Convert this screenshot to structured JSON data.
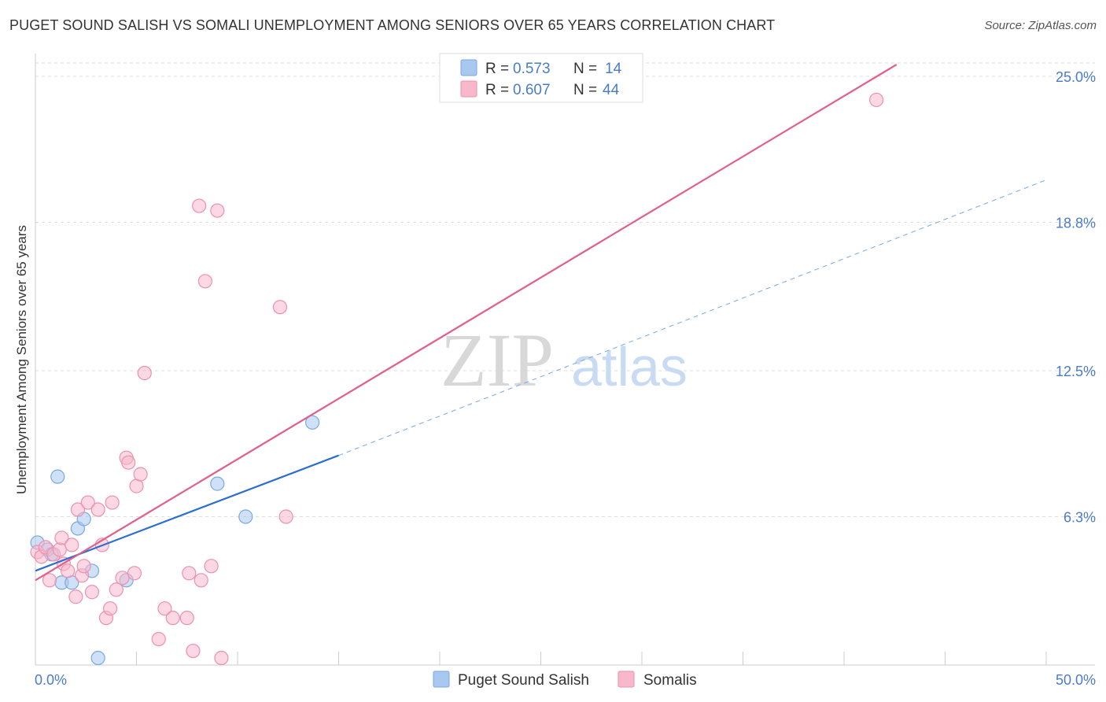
{
  "title": "PUGET SOUND SALISH VS SOMALI UNEMPLOYMENT AMONG SENIORS OVER 65 YEARS CORRELATION CHART",
  "source": "Source: ZipAtlas.com",
  "watermark": {
    "zip": "ZIP",
    "atlas": "atlas"
  },
  "colors": {
    "blue_fill": "#a8c8f0",
    "blue_stroke": "#7aa8e0",
    "blue_line": "#2a6fcf",
    "pink_fill": "#f8b8cc",
    "pink_stroke": "#ee90ae",
    "pink_line": "#e0608a",
    "tick_label": "#4a7cc7",
    "grid": "#dddddd"
  },
  "legend": {
    "r_label": "R =",
    "n_label": "N =",
    "rows": [
      {
        "series": "Puget Sound Salish",
        "r": "0.573",
        "n": "14"
      },
      {
        "series": "Somalis",
        "r": "0.607",
        "n": "44"
      }
    ]
  },
  "chart_data": {
    "type": "scatter",
    "title": "PUGET SOUND SALISH VS SOMALI UNEMPLOYMENT AMONG SENIORS OVER 65 YEARS CORRELATION CHART",
    "xlabel": "",
    "ylabel": "Unemployment Among Seniors over 65 years",
    "xlim": [
      0,
      50
    ],
    "ylim": [
      0,
      25
    ],
    "x_tick_labels": [
      "0.0%",
      "50.0%"
    ],
    "y_ticks": [
      {
        "value": 6.3,
        "label": "6.3%"
      },
      {
        "value": 12.5,
        "label": "12.5%"
      },
      {
        "value": 18.8,
        "label": "18.8%"
      },
      {
        "value": 25.0,
        "label": "25.0%"
      }
    ],
    "grid": true,
    "series": [
      {
        "name": "Puget Sound Salish",
        "points": [
          [
            0.1,
            5.2
          ],
          [
            0.6,
            4.9
          ],
          [
            0.8,
            4.7
          ],
          [
            1.1,
            8.0
          ],
          [
            1.3,
            3.5
          ],
          [
            1.8,
            3.5
          ],
          [
            2.1,
            5.8
          ],
          [
            2.4,
            6.2
          ],
          [
            2.8,
            4.0
          ],
          [
            3.1,
            0.3
          ],
          [
            4.5,
            3.6
          ],
          [
            9.0,
            7.7
          ],
          [
            10.4,
            6.3
          ],
          [
            13.7,
            10.3
          ]
        ],
        "trend": {
          "x0": 0,
          "y0": 4.0,
          "x1": 15.0,
          "y1": 8.9,
          "dash_x1": 50,
          "dash_y1": 20.6
        }
      },
      {
        "name": "Somalis",
        "points": [
          [
            0.1,
            4.8
          ],
          [
            0.3,
            4.6
          ],
          [
            0.5,
            5.0
          ],
          [
            0.7,
            3.6
          ],
          [
            0.9,
            4.7
          ],
          [
            1.2,
            4.9
          ],
          [
            1.3,
            5.4
          ],
          [
            1.4,
            4.3
          ],
          [
            1.6,
            4.0
          ],
          [
            1.8,
            5.1
          ],
          [
            2.0,
            2.9
          ],
          [
            2.1,
            6.6
          ],
          [
            2.3,
            3.8
          ],
          [
            2.4,
            4.2
          ],
          [
            2.6,
            6.9
          ],
          [
            2.8,
            3.1
          ],
          [
            3.1,
            6.6
          ],
          [
            3.3,
            5.1
          ],
          [
            3.5,
            2.0
          ],
          [
            3.7,
            2.4
          ],
          [
            3.8,
            6.9
          ],
          [
            4.0,
            3.2
          ],
          [
            4.3,
            3.7
          ],
          [
            4.5,
            8.8
          ],
          [
            4.6,
            8.6
          ],
          [
            4.9,
            3.9
          ],
          [
            5.0,
            7.6
          ],
          [
            5.2,
            8.1
          ],
          [
            5.4,
            12.4
          ],
          [
            6.1,
            1.1
          ],
          [
            6.4,
            2.4
          ],
          [
            6.8,
            2.0
          ],
          [
            7.5,
            2.0
          ],
          [
            7.6,
            3.9
          ],
          [
            7.8,
            0.6
          ],
          [
            8.2,
            3.6
          ],
          [
            8.1,
            19.5
          ],
          [
            8.4,
            16.3
          ],
          [
            8.7,
            4.2
          ],
          [
            9.0,
            19.3
          ],
          [
            9.2,
            0.3
          ],
          [
            12.1,
            15.2
          ],
          [
            12.4,
            6.3
          ],
          [
            41.6,
            24.0
          ]
        ],
        "trend": {
          "x0": 0,
          "y0": 3.6,
          "x1": 42.6,
          "y1": 25.0
        }
      }
    ]
  },
  "bottom_legend": [
    "Puget Sound Salish",
    "Somalis"
  ]
}
